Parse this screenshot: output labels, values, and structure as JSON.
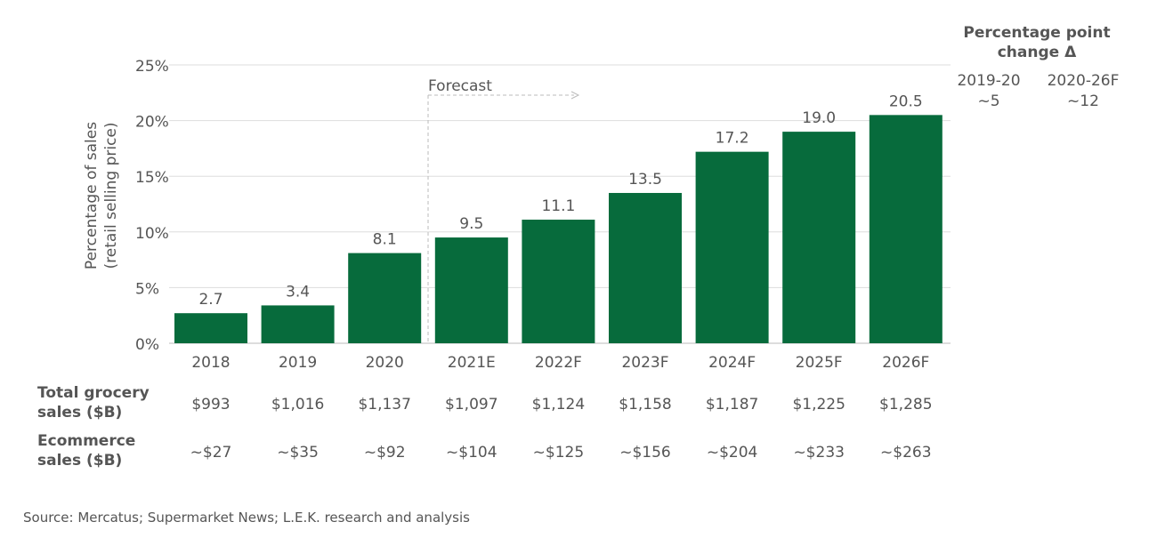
{
  "chart_data": {
    "type": "bar",
    "categories": [
      "2018",
      "2019",
      "2020",
      "2021E",
      "2022F",
      "2023F",
      "2024F",
      "2025F",
      "2026F"
    ],
    "values": [
      2.7,
      3.4,
      8.1,
      9.5,
      11.1,
      13.5,
      17.2,
      19.0,
      20.5
    ],
    "value_labels": [
      "2.7",
      "3.4",
      "8.1",
      "9.5",
      "11.1",
      "13.5",
      "17.2",
      "19.0",
      "20.5"
    ],
    "ylabel_lines": [
      "Percentage of sales",
      "(retail selling price)"
    ],
    "yticks": [
      0,
      5,
      10,
      15,
      20,
      25
    ],
    "ytick_labels": [
      "0%",
      "5%",
      "10%",
      "15%",
      "20%",
      "25%"
    ],
    "ylim": [
      0,
      25
    ],
    "grid": true,
    "bar_color": "#076b3c",
    "forecast_label": "Forecast",
    "forecast_starts_before": "2021E",
    "side_panel": {
      "title_lines": [
        "Percentage point",
        "change Δ"
      ],
      "columns": [
        {
          "period": "2019-20",
          "value": "~5"
        },
        {
          "period": "2020-26F",
          "value": "~12"
        }
      ]
    },
    "table_rows": [
      {
        "label_lines": [
          "Total grocery",
          "sales ($B)"
        ],
        "values": [
          "$993",
          "$1,016",
          "$1,137",
          "$1,097",
          "$1,124",
          "$1,158",
          "$1,187",
          "$1,225",
          "$1,285"
        ]
      },
      {
        "label_lines": [
          "Ecommerce",
          "sales ($B)"
        ],
        "values": [
          "~$27",
          "~$35",
          "~$92",
          "~$104",
          "~$125",
          "~$156",
          "~$204",
          "~$233",
          "~$263"
        ]
      }
    ],
    "source": "Source: Mercatus; Supermarket News; L.E.K. research and analysis"
  }
}
